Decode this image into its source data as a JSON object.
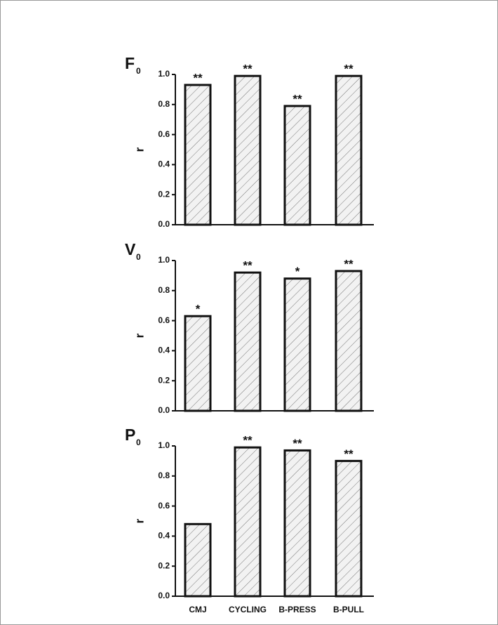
{
  "chart_data": [
    {
      "type": "bar",
      "title": "F",
      "title_subscript": "0",
      "y_label": "r",
      "values": [
        0.93,
        0.99,
        0.79,
        0.99
      ],
      "annotations": [
        "**",
        "**",
        "**",
        "**"
      ],
      "ylim": [
        0,
        1
      ],
      "yticks": [
        {
          "value": 0,
          "label": "0.0"
        },
        0.2,
        0.4,
        0.6,
        0.8,
        {
          "value": 1,
          "label": "1.0"
        }
      ]
    },
    {
      "type": "bar",
      "title": "V",
      "title_subscript": "0",
      "y_label": "r",
      "values": [
        0.63,
        0.92,
        0.88,
        0.93
      ],
      "annotations": [
        "*",
        "**",
        "*",
        "**"
      ],
      "ylim": [
        0,
        1
      ],
      "yticks": [
        {
          "value": 0,
          "label": "0.0"
        },
        0.2,
        0.4,
        0.6,
        0.8,
        {
          "value": 1,
          "label": "1.0"
        }
      ]
    },
    {
      "type": "bar",
      "title": "P",
      "title_subscript": "0",
      "y_label": "r",
      "categories": [
        "CMJ",
        "CYCLING",
        "B-PRESS",
        "B-PULL"
      ],
      "values": [
        0.48,
        0.99,
        0.97,
        0.9
      ],
      "annotations": [
        null,
        "**",
        "**",
        "**"
      ],
      "ylim": [
        0,
        1
      ],
      "yticks": [
        {
          "value": 0,
          "label": "0.0"
        },
        0.2,
        0.4,
        0.6,
        0.8,
        {
          "value": 1,
          "label": "1.0"
        }
      ]
    }
  ]
}
